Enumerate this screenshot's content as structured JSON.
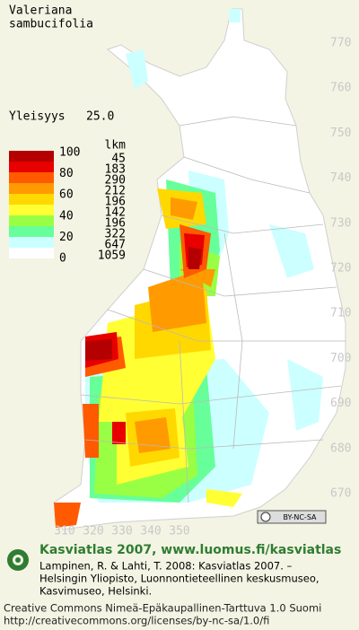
{
  "map": {
    "title_lines": [
      "Valeriana",
      "sambucifolia"
    ],
    "frequency_label": "Yleisyys",
    "frequency_value": "25.0",
    "grid_labels": {
      "north": [
        770,
        760,
        750,
        740,
        730,
        720,
        710,
        700,
        690,
        680,
        670
      ],
      "east": [
        310,
        320,
        330,
        340,
        350
      ]
    },
    "legend": {
      "scale_labels": [
        100,
        80,
        60,
        40,
        20,
        0
      ],
      "count_header": "lkm",
      "counts": [
        45,
        183,
        290,
        212,
        196,
        142,
        196,
        322,
        647,
        1059
      ],
      "colors": [
        "#b40000",
        "#e80000",
        "#ff5a00",
        "#ff9a00",
        "#ffd800",
        "#ffff33",
        "#99ff44",
        "#66ff99",
        "#ccffff",
        "#ffffff"
      ]
    },
    "license_badge": "BY-NC-SA",
    "footer": {
      "heading": "Kasviatlas 2007, www.luomus.fi/kasviatlas",
      "citation_lines": [
        "Lampinen, R. & Lahti, T. 2008: Kasviatlas 2007. –",
        "Helsingin Yliopisto, Luonnontieteellinen keskusmuseo,",
        "Kasvimuseo, Helsinki."
      ],
      "license_lines": [
        "Creative Commons Nimeä-Epäkaupallinen-Tarttuva 1.0 Suomi",
        "http://creativecommons.org/licenses/by-nc-sa/1.0/fi"
      ]
    }
  }
}
